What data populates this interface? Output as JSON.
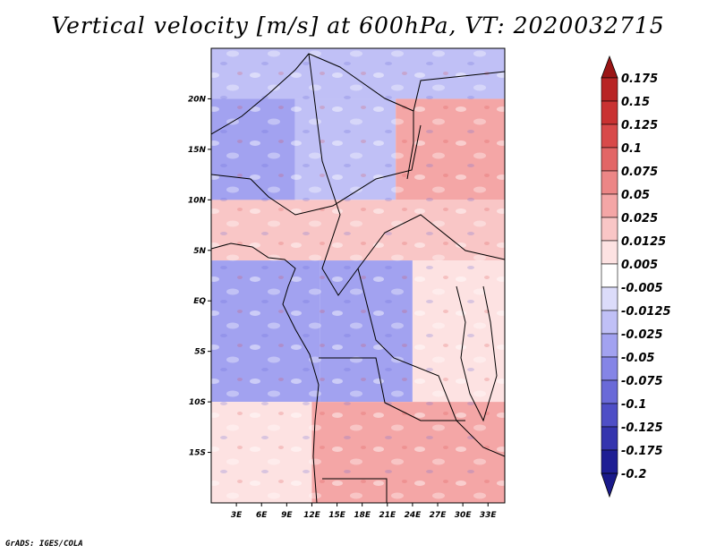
{
  "title": "Vertical velocity [m/s] at 600hPa, VT: 2020032715",
  "credit": "GrADS: IGES/COLA",
  "chart_data": {
    "type": "heatmap",
    "title": "Vertical velocity [m/s] at 600hPa, VT: 2020032715",
    "variable": "Vertical velocity",
    "units": "m/s",
    "level": "600hPa",
    "valid_time": "2020032715",
    "lon_range": [
      0,
      35
    ],
    "lat_range": [
      -20,
      25
    ],
    "x_ticks": [
      {
        "value": 3,
        "label": "3E"
      },
      {
        "value": 6,
        "label": "6E"
      },
      {
        "value": 9,
        "label": "9E"
      },
      {
        "value": 12,
        "label": "12E"
      },
      {
        "value": 15,
        "label": "15E"
      },
      {
        "value": 18,
        "label": "18E"
      },
      {
        "value": 21,
        "label": "21E"
      },
      {
        "value": 24,
        "label": "24E"
      },
      {
        "value": 27,
        "label": "27E"
      },
      {
        "value": 30,
        "label": "30E"
      },
      {
        "value": 33,
        "label": "33E"
      }
    ],
    "y_ticks": [
      {
        "value": 20,
        "label": "20N"
      },
      {
        "value": 15,
        "label": "15N"
      },
      {
        "value": 10,
        "label": "10N"
      },
      {
        "value": 5,
        "label": "5N"
      },
      {
        "value": 0,
        "label": "EQ"
      },
      {
        "value": -5,
        "label": "5S"
      },
      {
        "value": -10,
        "label": "10S"
      },
      {
        "value": -15,
        "label": "15S"
      }
    ],
    "colorbar": {
      "levels": [
        {
          "label": "0.175",
          "color": "#a11a1a"
        },
        {
          "label": "0.15",
          "color": "#b82424"
        },
        {
          "label": "0.125",
          "color": "#c93232"
        },
        {
          "label": "0.1",
          "color": "#d84a4a"
        },
        {
          "label": "0.075",
          "color": "#e26666"
        },
        {
          "label": "0.05",
          "color": "#ec8686"
        },
        {
          "label": "0.025",
          "color": "#f4a6a6"
        },
        {
          "label": "0.0125",
          "color": "#f9c6c6"
        },
        {
          "label": "0.005",
          "color": "#fde2e2"
        },
        {
          "label": "-0.005",
          "color": "#ffffff"
        },
        {
          "label": "-0.0125",
          "color": "#dcdcfa"
        },
        {
          "label": "-0.025",
          "color": "#c0c0f6"
        },
        {
          "label": "-0.05",
          "color": "#a2a2f0"
        },
        {
          "label": "-0.075",
          "color": "#8585e6"
        },
        {
          "label": "-0.1",
          "color": "#6a6ad8"
        },
        {
          "label": "-0.125",
          "color": "#4e4ec6"
        },
        {
          "label": "-0.175",
          "color": "#3434ae"
        },
        {
          "label": "-0.2",
          "color": "#1e1e94"
        }
      ],
      "top_color": "#9a1515",
      "bottom_color": "#1a1a8a"
    },
    "regions": [
      {
        "lon": [
          0,
          35
        ],
        "lat": [
          20,
          25
        ],
        "value": -0.02
      },
      {
        "lon": [
          0,
          10
        ],
        "lat": [
          5,
          20
        ],
        "value": -0.03
      },
      {
        "lon": [
          10,
          22
        ],
        "lat": [
          10,
          20
        ],
        "value": -0.02
      },
      {
        "lon": [
          22,
          35
        ],
        "lat": [
          10,
          20
        ],
        "value": 0.03
      },
      {
        "lon": [
          0,
          35
        ],
        "lat": [
          4,
          10
        ],
        "value": 0.02
      },
      {
        "lon": [
          0,
          13
        ],
        "lat": [
          -10,
          4
        ],
        "value": -0.04
      },
      {
        "lon": [
          13,
          24
        ],
        "lat": [
          -10,
          4
        ],
        "value": -0.03
      },
      {
        "lon": [
          24,
          35
        ],
        "lat": [
          -10,
          4
        ],
        "value": 0.01
      },
      {
        "lon": [
          0,
          12
        ],
        "lat": [
          -20,
          -10
        ],
        "value": 0.005
      },
      {
        "lon": [
          12,
          35
        ],
        "lat": [
          -20,
          -10
        ],
        "value": 0.03
      }
    ]
  }
}
